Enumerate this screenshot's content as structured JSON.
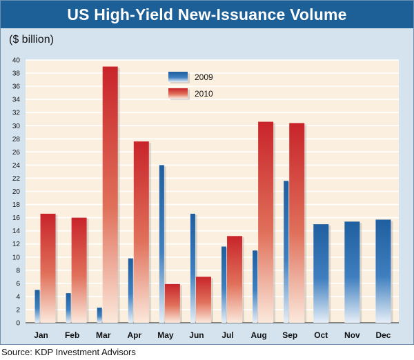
{
  "header": {
    "title": "US High-Yield New-Issuance Volume"
  },
  "colors": {
    "series_2009": "#1f5fa0",
    "series_2010": "#c8242a",
    "plot_bg": "#fbf0e0",
    "frame_bg": "#d5e3ef",
    "title_bg": "#1d5f97"
  },
  "chart_data": {
    "type": "bar",
    "title": "US High-Yield New-Issuance Volume",
    "ylabel": "($ billion)",
    "xlabel": "",
    "ylim": [
      0,
      40
    ],
    "yticks": [
      0,
      2,
      4,
      6,
      8,
      10,
      12,
      14,
      16,
      18,
      20,
      22,
      24,
      26,
      28,
      30,
      32,
      34,
      36,
      38,
      40
    ],
    "grid": true,
    "legend_position": "top-center",
    "categories": [
      "Jan",
      "Feb",
      "Mar",
      "Apr",
      "May",
      "Jun",
      "Jul",
      "Aug",
      "Sep",
      "Oct",
      "Nov",
      "Dec"
    ],
    "series": [
      {
        "name": "2009",
        "values": [
          5.0,
          4.5,
          2.3,
          9.8,
          24.0,
          16.6,
          11.6,
          11.0,
          21.6,
          15.0,
          15.4,
          15.7
        ]
      },
      {
        "name": "2010",
        "values": [
          16.6,
          16.0,
          39.0,
          27.6,
          5.9,
          7.0,
          13.2,
          30.6,
          30.4,
          null,
          null,
          null
        ]
      }
    ],
    "source": "Source: KDP Investment Advisors"
  }
}
